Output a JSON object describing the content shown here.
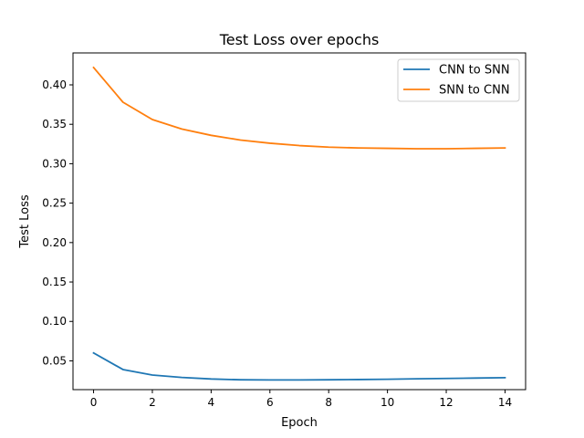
{
  "chart_data": {
    "type": "line",
    "title": "Test Loss over epochs",
    "xlabel": "Epoch",
    "ylabel": "Test Loss",
    "xlim": [
      -0.7,
      14.7
    ],
    "ylim": [
      0.0135,
      0.4405
    ],
    "xticks": [
      0,
      2,
      4,
      6,
      8,
      10,
      12,
      14
    ],
    "yticks": [
      0.05,
      0.1,
      0.15,
      0.2,
      0.25,
      0.3,
      0.35,
      0.4
    ],
    "ytick_labels": [
      "0.05",
      "0.10",
      "0.15",
      "0.20",
      "0.25",
      "0.30",
      "0.35",
      "0.40"
    ],
    "grid": false,
    "legend_position": "top-right",
    "x": [
      0,
      1,
      2,
      3,
      4,
      5,
      6,
      7,
      8,
      9,
      10,
      11,
      12,
      13,
      14
    ],
    "series": [
      {
        "name": "CNN to SNN",
        "color": "#1f77b4",
        "values": [
          0.06,
          0.039,
          0.032,
          0.029,
          0.027,
          0.026,
          0.0258,
          0.0258,
          0.026,
          0.0263,
          0.0267,
          0.0272,
          0.0277,
          0.0282,
          0.0287
        ]
      },
      {
        "name": "SNN to CNN",
        "color": "#ff7f0e",
        "values": [
          0.422,
          0.378,
          0.356,
          0.344,
          0.336,
          0.33,
          0.326,
          0.323,
          0.321,
          0.32,
          0.3195,
          0.319,
          0.319,
          0.3195,
          0.32
        ]
      }
    ]
  }
}
